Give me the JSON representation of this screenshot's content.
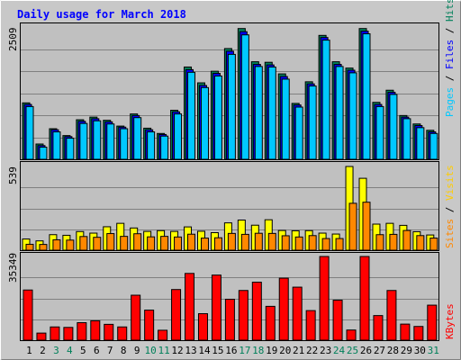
{
  "title": "Daily usage for March 2018",
  "panels": {
    "top": {
      "ymax_label": "2509",
      "side_labels": [
        "Pages",
        " / ",
        "Files",
        " / ",
        "Hits"
      ]
    },
    "mid": {
      "ymax_label": "539",
      "side_labels": [
        "Sites",
        " / ",
        "Visits"
      ]
    },
    "bottom": {
      "ymax_label": "35349",
      "side_labels": [
        "KBytes"
      ]
    }
  },
  "colors": {
    "hits": "#00805a",
    "files": "#0000ff",
    "pages": "#00c8ff",
    "visits": "#ffff00",
    "sites": "#ff8800",
    "kbytes": "#ff0000",
    "title": "#0000ff",
    "weekday_label": "#000000",
    "weekend_label": "#00805a"
  },
  "chart_data": [
    {
      "type": "bar",
      "title": "Daily usage for March 2018",
      "categories": [
        "1",
        "2",
        "3",
        "4",
        "5",
        "6",
        "7",
        "8",
        "9",
        "10",
        "11",
        "12",
        "13",
        "14",
        "15",
        "16",
        "17",
        "18",
        "19",
        "20",
        "21",
        "22",
        "23",
        "24",
        "25",
        "26",
        "27",
        "28",
        "29",
        "30",
        "31"
      ],
      "weekend_days": [
        "3",
        "4",
        "10",
        "11",
        "17",
        "18",
        "24",
        "25",
        "31"
      ],
      "ylim": [
        0,
        2509
      ],
      "series": [
        {
          "name": "Hits",
          "values": [
            1070,
            290,
            580,
            450,
            750,
            800,
            740,
            630,
            860,
            590,
            490,
            930,
            1750,
            1450,
            1670,
            2100,
            2480,
            1850,
            1840,
            1620,
            1060,
            1470,
            2350,
            1850,
            1730,
            2480,
            1080,
            1310,
            830,
            670,
            550
          ]
        },
        {
          "name": "Files",
          "values": [
            1040,
            260,
            560,
            430,
            720,
            770,
            710,
            610,
            830,
            560,
            470,
            900,
            1700,
            1400,
            1630,
            2050,
            2420,
            1800,
            1790,
            1570,
            1030,
            1430,
            2310,
            1800,
            1690,
            2430,
            1040,
            1270,
            800,
            640,
            520
          ]
        },
        {
          "name": "Pages",
          "values": [
            1000,
            230,
            520,
            400,
            680,
            730,
            670,
            580,
            790,
            520,
            440,
            860,
            1650,
            1360,
            1580,
            1990,
            2360,
            1760,
            1750,
            1520,
            990,
            1390,
            2260,
            1760,
            1640,
            2380,
            1000,
            1230,
            770,
            600,
            490
          ]
        }
      ]
    },
    {
      "type": "bar",
      "categories": [
        "1",
        "2",
        "3",
        "4",
        "5",
        "6",
        "7",
        "8",
        "9",
        "10",
        "11",
        "12",
        "13",
        "14",
        "15",
        "16",
        "17",
        "18",
        "19",
        "20",
        "21",
        "22",
        "23",
        "24",
        "25",
        "26",
        "27",
        "28",
        "29",
        "30",
        "31"
      ],
      "ylim": [
        0,
        539
      ],
      "series": [
        {
          "name": "Visits",
          "values": [
            72,
            60,
            100,
            96,
            120,
            110,
            151,
            173,
            143,
            121,
            126,
            121,
            150,
            122,
            113,
            176,
            194,
            161,
            196,
            127,
            125,
            126,
            110,
            104,
            539,
            463,
            168,
            173,
            160,
            119,
            98
          ]
        },
        {
          "name": "Sites",
          "values": [
            38,
            37,
            67,
            65,
            88,
            83,
            107,
            89,
            106,
            86,
            89,
            85,
            103,
            78,
            80,
            108,
            102,
            109,
            108,
            93,
            85,
            94,
            75,
            75,
            302,
            309,
            100,
            102,
            127,
            94,
            78
          ]
        }
      ]
    },
    {
      "type": "bar",
      "categories": [
        "1",
        "2",
        "3",
        "4",
        "5",
        "6",
        "7",
        "8",
        "9",
        "10",
        "11",
        "12",
        "13",
        "14",
        "15",
        "16",
        "17",
        "18",
        "19",
        "20",
        "21",
        "22",
        "23",
        "24",
        "25",
        "26",
        "27",
        "28",
        "29",
        "30",
        "31"
      ],
      "ylim": [
        0,
        35349
      ],
      "series": [
        {
          "name": "KBytes",
          "values": [
            21200,
            3000,
            5600,
            5400,
            7400,
            8200,
            6700,
            5600,
            19000,
            12700,
            4200,
            21400,
            28200,
            11200,
            27500,
            17300,
            21000,
            24500,
            14300,
            26200,
            22400,
            12500,
            35349,
            16900,
            4300,
            35349,
            10400,
            21000,
            6800,
            5800,
            14800
          ]
        }
      ]
    }
  ]
}
